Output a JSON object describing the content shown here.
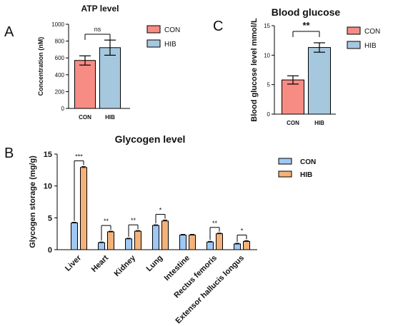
{
  "panel_labels": [
    "A",
    "B",
    "C"
  ],
  "colors": {
    "con_ac": "#f78c84",
    "hib_ac": "#a6c8df",
    "con_b": "#9fc8f2",
    "hib_b": "#f4b27a"
  },
  "chart_data": [
    {
      "id": "A",
      "type": "bar",
      "title": "ATP level",
      "ylabel": "Concentration (nM)",
      "categories": [
        "CON",
        "HIB"
      ],
      "values": [
        570,
        722
      ],
      "errors": [
        55,
        90
      ],
      "ylim": [
        0,
        1000
      ],
      "yticks": [
        0,
        200,
        400,
        600,
        800,
        1000
      ],
      "legend": [
        "CON",
        "HIB"
      ],
      "legend_position": "right",
      "significance": [
        {
          "between": [
            "CON",
            "HIB"
          ],
          "label": "ns"
        }
      ]
    },
    {
      "id": "C",
      "type": "bar",
      "title": "Blood glucose",
      "ylabel": "Blood glucose level mmol/L",
      "categories": [
        "CON",
        "HIB"
      ],
      "values": [
        5.8,
        11.3
      ],
      "errors": [
        0.7,
        0.8
      ],
      "ylim": [
        0,
        15
      ],
      "yticks": [
        0,
        5,
        10,
        15
      ],
      "legend": [
        "CON",
        "HIB"
      ],
      "legend_position": "right",
      "significance": [
        {
          "between": [
            "CON",
            "HIB"
          ],
          "label": "**"
        }
      ]
    },
    {
      "id": "B",
      "type": "bar",
      "title": "Glycogen level",
      "ylabel": "Glycogen storage (mg/g)",
      "categories": [
        "Liver",
        "Heart",
        "Kidney",
        "Lung",
        "Intestine",
        "Rectus femoris",
        "Extensor hallucis longus"
      ],
      "series": [
        {
          "name": "CON",
          "values": [
            4.2,
            1.1,
            1.7,
            3.8,
            2.3,
            1.2,
            0.9
          ],
          "errors": [
            0.1,
            0.1,
            0.1,
            0.1,
            0.1,
            0.1,
            0.1
          ]
        },
        {
          "name": "HIB",
          "values": [
            12.9,
            2.8,
            2.9,
            4.5,
            2.3,
            2.5,
            1.3
          ],
          "errors": [
            0.15,
            0.1,
            0.1,
            0.15,
            0.1,
            0.1,
            0.1
          ]
        }
      ],
      "ylim": [
        0,
        15
      ],
      "yticks": [
        0,
        5,
        10,
        15
      ],
      "legend": [
        "CON",
        "HIB"
      ],
      "legend_position": "right",
      "significance": [
        "***",
        "**",
        "**",
        "*",
        "",
        "**",
        "*"
      ]
    }
  ]
}
